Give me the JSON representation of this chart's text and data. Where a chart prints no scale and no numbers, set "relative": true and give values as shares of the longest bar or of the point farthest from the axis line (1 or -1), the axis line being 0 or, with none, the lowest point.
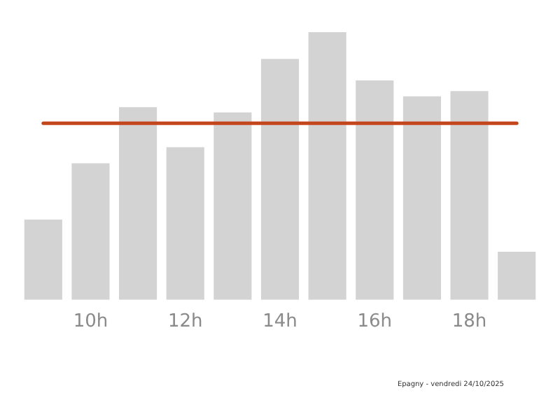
{
  "chart_data": {
    "type": "bar",
    "relative": true,
    "categories": [
      null,
      "10h",
      null,
      "12h",
      null,
      "14h",
      null,
      "16h",
      null,
      "18h",
      null
    ],
    "values": [
      0.3,
      0.51,
      0.72,
      0.57,
      0.7,
      0.9,
      1,
      0.82,
      0.76,
      0.78,
      0.18
    ],
    "color": "#d3d3d3",
    "grid": false,
    "legend": false,
    "ref_lines": [
      {
        "axis": "y",
        "value": 0.66,
        "color": "#c4461c"
      }
    ],
    "annotations": [
      "Epagny - vendredi 24/10/2025"
    ]
  }
}
